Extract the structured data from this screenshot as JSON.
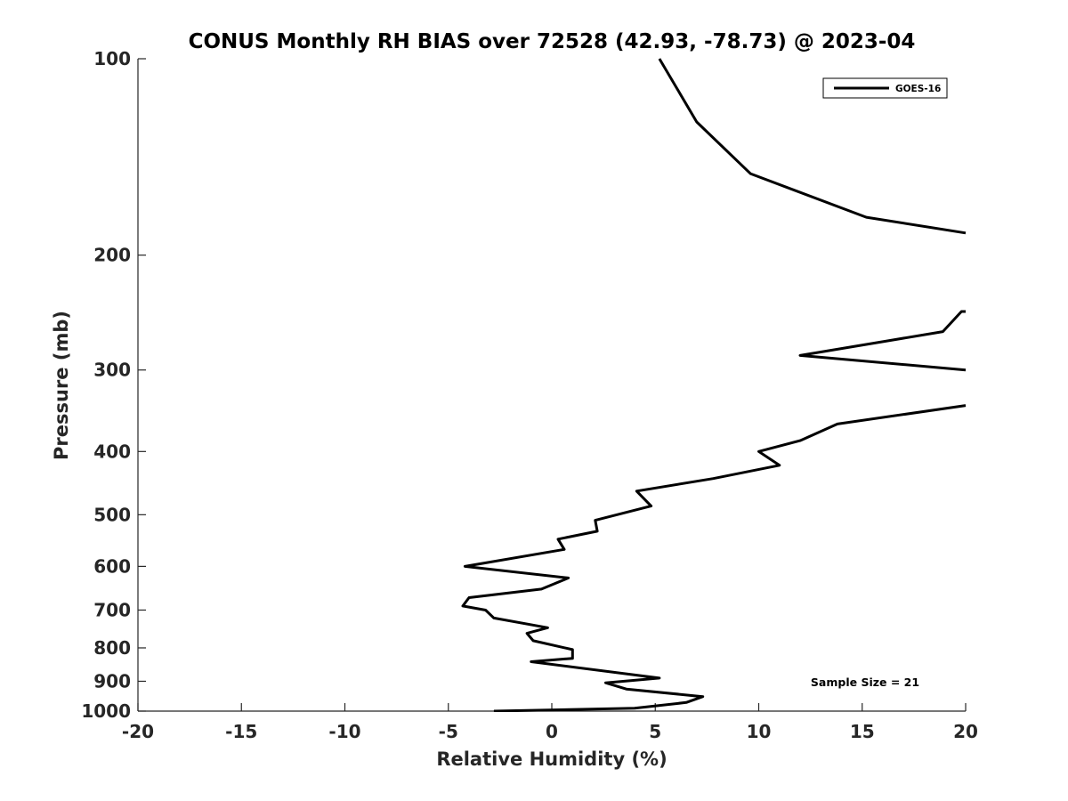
{
  "chart_data": {
    "type": "line",
    "title": "CONUS Monthly RH BIAS over 72528 (42.93, -78.73) @ 2023-04",
    "xlabel": "Relative Humidity (%)",
    "ylabel": "Pressure (mb)",
    "xlim": [
      -20,
      20
    ],
    "ylim": [
      100,
      1000
    ],
    "y_scale": "log",
    "y_reversed": true,
    "xticks": [
      -20,
      -15,
      -10,
      -5,
      0,
      5,
      10,
      15,
      20
    ],
    "xtick_labels": [
      "-20",
      "-15",
      "-10",
      "-5",
      "0",
      "5",
      "10",
      "15",
      "20"
    ],
    "yticks": [
      100,
      200,
      300,
      400,
      500,
      600,
      700,
      800,
      900,
      1000
    ],
    "ytick_labels": [
      "100",
      "200",
      "300",
      "400",
      "500",
      "600",
      "700",
      "800",
      "900",
      "1000"
    ],
    "grid": false,
    "legend_position": "top-right",
    "annotation": "Sample Size = 21",
    "series": [
      {
        "name": "GOES-16",
        "color": "#000000",
        "segments": [
          {
            "x": [
              5.2,
              7.0,
              9.6,
              15.2,
              20.0
            ],
            "y": [
              100,
              125,
              150,
              175,
              185
            ]
          },
          {
            "x": [
              20.0,
              19.8,
              18.9,
              12.0,
              20.0
            ],
            "y": [
              244,
              244,
              262,
              285,
              300
            ]
          },
          {
            "x": [
              20.0,
              13.8,
              12.0,
              10.0,
              11.0,
              7.8,
              4.1,
              4.8,
              2.1,
              2.2,
              0.3,
              0.6,
              -4.2,
              0.8,
              -0.5,
              -4.0,
              -4.3,
              -3.2,
              -2.8,
              -0.2,
              -1.2,
              -0.9,
              1.0,
              1.0,
              -1.0,
              5.2,
              2.6,
              3.6,
              7.3,
              6.5,
              4.0,
              -2.8
            ],
            "y": [
              340,
              363,
              385,
              400,
              420,
              440,
              460,
              485,
              510,
              530,
              545,
              565,
              600,
              625,
              650,
              670,
              690,
              700,
              720,
              745,
              760,
              780,
              805,
              830,
              840,
              890,
              905,
              925,
              950,
              970,
              990,
              1000
            ]
          }
        ]
      }
    ]
  }
}
